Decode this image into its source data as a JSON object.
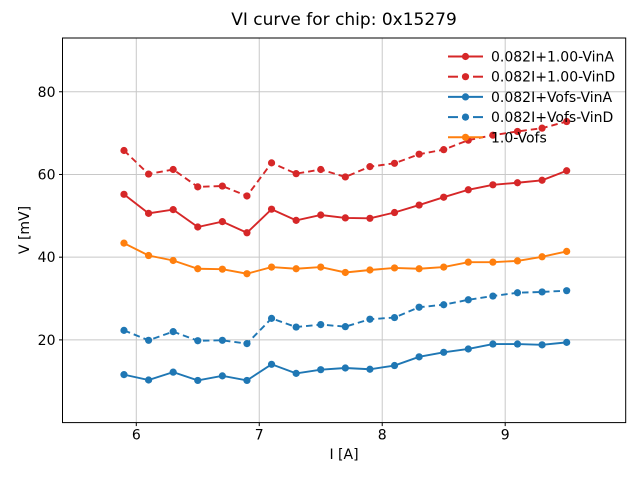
{
  "title": "VI curve for chip: 0x15279",
  "chart_data": {
    "type": "line",
    "title": "VI curve for chip: 0x15279",
    "xlabel": "I [A]",
    "ylabel": "V [mV]",
    "xlim": [
      5.4,
      9.98
    ],
    "ylim": [
      0,
      93
    ],
    "xticks": [
      6,
      7,
      8,
      9
    ],
    "yticks": [
      20,
      40,
      60,
      80
    ],
    "grid": true,
    "grid_color": "#c8c8c8",
    "spine_color": "#000000",
    "legend_position": "upper right",
    "legend_frame": false,
    "x": [
      5.9,
      6.1,
      6.3,
      6.5,
      6.7,
      6.9,
      7.1,
      7.3,
      7.5,
      7.7,
      7.9,
      8.1,
      8.3,
      8.5,
      8.7,
      8.9,
      9.1,
      9.3,
      9.5
    ],
    "series": [
      {
        "name": "0.082I+1.00-VinA",
        "color": "#d62728",
        "style": "solid",
        "marker": "circle",
        "values": [
          55.2,
          50.6,
          51.5,
          47.3,
          48.6,
          45.9,
          51.6,
          48.9,
          50.2,
          49.5,
          49.4,
          50.8,
          52.6,
          54.5,
          56.3,
          57.5,
          58.0,
          58.6,
          60.9
        ]
      },
      {
        "name": "0.082I+1.00-VinD",
        "color": "#d62728",
        "style": "dashed",
        "marker": "circle",
        "values": [
          65.8,
          60.1,
          61.2,
          57.0,
          57.2,
          54.8,
          62.8,
          60.2,
          61.2,
          59.4,
          61.9,
          62.7,
          64.9,
          66.0,
          68.3,
          69.5,
          70.4,
          71.2,
          72.8
        ]
      },
      {
        "name": "0.082I+Vofs-VinA",
        "color": "#1f77b4",
        "style": "solid",
        "marker": "circle",
        "values": [
          11.6,
          10.3,
          12.2,
          10.2,
          11.3,
          10.2,
          14.1,
          11.9,
          12.8,
          13.2,
          12.9,
          13.8,
          15.9,
          17.0,
          17.8,
          19.0,
          19.0,
          18.8,
          19.4
        ]
      },
      {
        "name": "0.082I+Vofs-VinD",
        "color": "#1f77b4",
        "style": "dashed",
        "marker": "circle",
        "values": [
          22.3,
          19.9,
          22.0,
          19.8,
          19.9,
          19.1,
          25.2,
          23.1,
          23.7,
          23.2,
          25.0,
          25.4,
          27.9,
          28.5,
          29.7,
          30.6,
          31.4,
          31.6,
          31.9
        ]
      },
      {
        "name": "1.0-Vofs",
        "color": "#ff7f0e",
        "style": "solid",
        "marker": "circle",
        "values": [
          43.4,
          40.4,
          39.2,
          37.2,
          37.1,
          36.0,
          37.6,
          37.2,
          37.6,
          36.3,
          36.9,
          37.4,
          37.2,
          37.6,
          38.8,
          38.8,
          39.1,
          40.1,
          41.4
        ]
      }
    ]
  }
}
